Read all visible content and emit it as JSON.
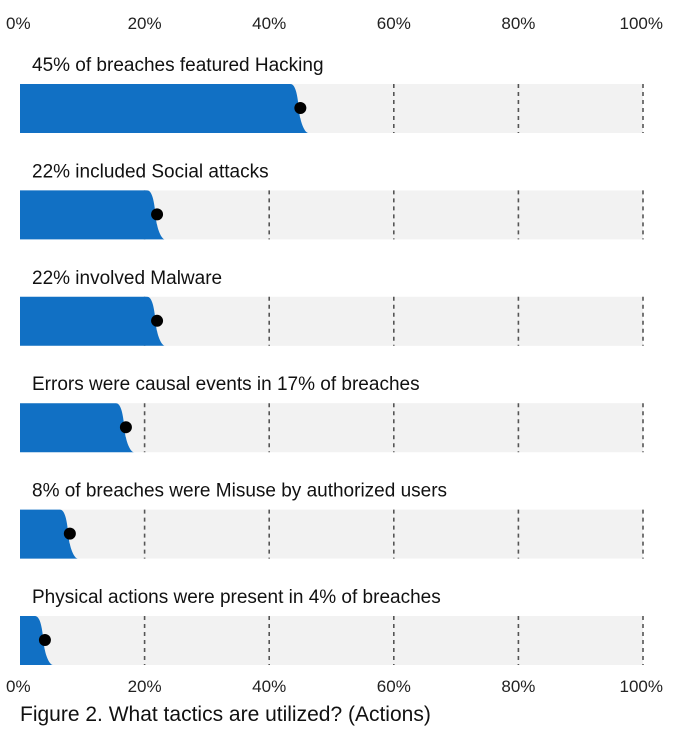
{
  "caption": "Figure 2. What tactics are utilized? (Actions)",
  "colors": {
    "bar": "#1170c4",
    "track": "#f2f2f2",
    "dot": "#000000",
    "grid": "#555555"
  },
  "chart_data": {
    "type": "bar",
    "orientation": "horizontal",
    "xlim": [
      0,
      100
    ],
    "ticks": [
      "0%",
      "20%",
      "40%",
      "60%",
      "80%",
      "100%"
    ],
    "tick_values": [
      0,
      20,
      40,
      60,
      80,
      100
    ],
    "grid": true,
    "rows": [
      {
        "label": "45% of breaches featured Hacking",
        "value": 45
      },
      {
        "label": "22% included Social attacks",
        "value": 22
      },
      {
        "label": "22% involved Malware",
        "value": 22
      },
      {
        "label": "Errors were causal events in 17% of breaches",
        "value": 17
      },
      {
        "label": "8% of breaches were Misuse by authorized users",
        "value": 8
      },
      {
        "label": "Physical actions were present in 4% of breaches",
        "value": 4
      }
    ]
  }
}
